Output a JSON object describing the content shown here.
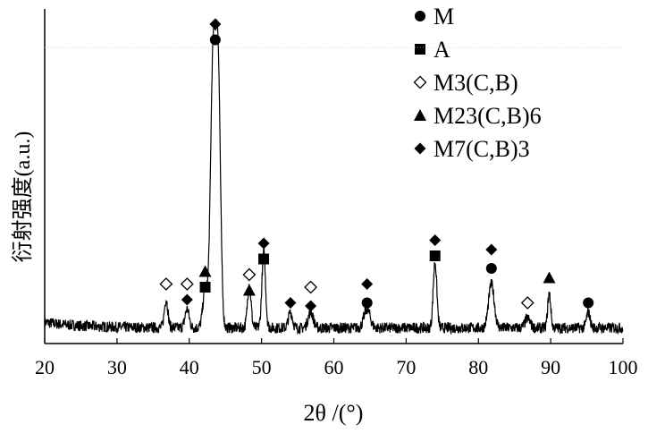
{
  "chart_data": {
    "type": "line",
    "xlabel": "2θ /(°)",
    "ylabel": "衍射强度(a.u.)",
    "xlim": [
      20,
      100
    ],
    "xticks": [
      20,
      30,
      40,
      50,
      60,
      70,
      80,
      90,
      100
    ],
    "grid": false,
    "legend_placement": "top-right",
    "legend": [
      {
        "marker": "circle",
        "text": "M",
        "sub": ""
      },
      {
        "marker": "square",
        "text": "A",
        "sub": ""
      },
      {
        "marker": "diamond-open",
        "text": "M3(C,B)",
        "sub": ""
      },
      {
        "marker": "triangle",
        "text": "M23(C,B)6",
        "sub": ""
      },
      {
        "marker": "diamond",
        "text": "M7(C,B)3",
        "sub": ""
      }
    ],
    "pattern": {
      "baseline": 0.05,
      "peaks": [
        {
          "x": 36.8,
          "h": 0.09,
          "w": 0.35
        },
        {
          "x": 39.7,
          "h": 0.06,
          "w": 0.4
        },
        {
          "x": 42.2,
          "h": 0.12,
          "w": 0.45
        },
        {
          "x": 43.3,
          "h": 0.86,
          "w": 0.5
        },
        {
          "x": 44.0,
          "h": 0.8,
          "w": 0.45
        },
        {
          "x": 48.3,
          "h": 0.14,
          "w": 0.35
        },
        {
          "x": 50.3,
          "h": 0.24,
          "w": 0.35
        },
        {
          "x": 54.0,
          "h": 0.05,
          "w": 0.4
        },
        {
          "x": 56.8,
          "h": 0.05,
          "w": 0.5
        },
        {
          "x": 64.6,
          "h": 0.06,
          "w": 0.6
        },
        {
          "x": 74.0,
          "h": 0.21,
          "w": 0.35
        },
        {
          "x": 81.8,
          "h": 0.14,
          "w": 0.55
        },
        {
          "x": 86.8,
          "h": 0.03,
          "w": 0.5
        },
        {
          "x": 89.8,
          "h": 0.11,
          "w": 0.3
        },
        {
          "x": 95.2,
          "h": 0.05,
          "w": 0.35
        }
      ]
    },
    "markers": [
      {
        "x": 36.8,
        "y": 0.19,
        "marker": "diamond-open"
      },
      {
        "x": 39.7,
        "y": 0.19,
        "marker": "diamond-open"
      },
      {
        "x": 39.7,
        "y": 0.14,
        "marker": "diamond"
      },
      {
        "x": 42.2,
        "y": 0.23,
        "marker": "triangle"
      },
      {
        "x": 42.2,
        "y": 0.18,
        "marker": "square"
      },
      {
        "x": 43.6,
        "y": 1.02,
        "marker": "diamond"
      },
      {
        "x": 43.6,
        "y": 0.97,
        "marker": "circle"
      },
      {
        "x": 48.3,
        "y": 0.17,
        "marker": "triangle"
      },
      {
        "x": 48.3,
        "y": 0.22,
        "marker": "diamond-open"
      },
      {
        "x": 50.3,
        "y": 0.27,
        "marker": "square"
      },
      {
        "x": 50.3,
        "y": 0.32,
        "marker": "diamond"
      },
      {
        "x": 54.0,
        "y": 0.13,
        "marker": "diamond"
      },
      {
        "x": 56.8,
        "y": 0.12,
        "marker": "diamond"
      },
      {
        "x": 56.8,
        "y": 0.18,
        "marker": "diamond-open"
      },
      {
        "x": 64.6,
        "y": 0.13,
        "marker": "circle"
      },
      {
        "x": 64.6,
        "y": 0.19,
        "marker": "diamond"
      },
      {
        "x": 74.0,
        "y": 0.28,
        "marker": "square"
      },
      {
        "x": 74.0,
        "y": 0.33,
        "marker": "diamond"
      },
      {
        "x": 81.8,
        "y": 0.24,
        "marker": "circle"
      },
      {
        "x": 81.8,
        "y": 0.3,
        "marker": "diamond"
      },
      {
        "x": 86.8,
        "y": 0.13,
        "marker": "diamond-open"
      },
      {
        "x": 89.8,
        "y": 0.21,
        "marker": "triangle"
      },
      {
        "x": 95.2,
        "y": 0.13,
        "marker": "circle"
      }
    ]
  }
}
